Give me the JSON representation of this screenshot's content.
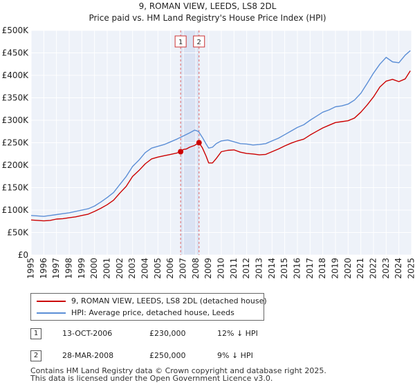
{
  "chart_data": {
    "type": "line",
    "title": "9, ROMAN VIEW, LEEDS, LS8 2DL",
    "subtitle": "Price paid vs. HM Land Registry's House Price Index (HPI)",
    "xlabel": "",
    "ylabel": "",
    "xlim": [
      1995,
      2025
    ],
    "ylim": [
      0,
      500000
    ],
    "grid": true,
    "x_ticks": [
      1995,
      1996,
      1997,
      1998,
      1999,
      2000,
      2001,
      2002,
      2003,
      2004,
      2005,
      2006,
      2007,
      2008,
      2009,
      2010,
      2011,
      2012,
      2013,
      2014,
      2015,
      2016,
      2017,
      2018,
      2019,
      2020,
      2021,
      2022,
      2023,
      2024,
      2025
    ],
    "x_tick_labels": [
      "1995",
      "1996",
      "1997",
      "1998",
      "1999",
      "2000",
      "2001",
      "2002",
      "2003",
      "2004",
      "2005",
      "2006",
      "2007",
      "2008",
      "2009",
      "2010",
      "2011",
      "2012",
      "2013",
      "2014",
      "2015",
      "2016",
      "2017",
      "2018",
      "2019",
      "2020",
      "2021",
      "2022",
      "2023",
      "2024",
      "2025"
    ],
    "y_ticks": [
      0,
      50000,
      100000,
      150000,
      200000,
      250000,
      300000,
      350000,
      400000,
      450000,
      500000
    ],
    "y_tick_labels": [
      "£0",
      "£50K",
      "£100K",
      "£150K",
      "£200K",
      "£250K",
      "£300K",
      "£350K",
      "£400K",
      "£450K",
      "£500K"
    ],
    "series": [
      {
        "name": "9, ROMAN VIEW, LEEDS, LS8 2DL (detached house)",
        "color": "#cc0000",
        "x": [
          1995.0,
          1995.5,
          1996.0,
          1996.5,
          1997.0,
          1997.5,
          1998.0,
          1998.5,
          1999.0,
          1999.5,
          2000.0,
          2000.5,
          2001.0,
          2001.5,
          2002.0,
          2002.5,
          2003.0,
          2003.5,
          2004.0,
          2004.5,
          2005.0,
          2005.5,
          2006.0,
          2006.5,
          2006.79,
          2007.0,
          2007.24,
          2007.5,
          2007.9,
          2008.0,
          2008.24,
          2008.5,
          2008.8,
          2009.0,
          2009.3,
          2009.6,
          2010.0,
          2010.5,
          2011.0,
          2011.5,
          2012.0,
          2012.5,
          2013.0,
          2013.5,
          2014.0,
          2014.5,
          2015.0,
          2015.5,
          2016.0,
          2016.5,
          2017.0,
          2017.5,
          2018.0,
          2018.5,
          2019.0,
          2019.5,
          2020.0,
          2020.5,
          2021.0,
          2021.5,
          2022.0,
          2022.5,
          2023.0,
          2023.5,
          2024.0,
          2024.5,
          2024.9
        ],
        "values": [
          78000,
          77000,
          76000,
          77000,
          80000,
          81000,
          83000,
          85000,
          88000,
          91000,
          97000,
          104000,
          112000,
          122000,
          138000,
          153000,
          175000,
          188000,
          203000,
          214000,
          218000,
          221000,
          224000,
          227000,
          230000,
          235000,
          236000,
          240000,
          244000,
          246000,
          250000,
          239000,
          220000,
          205000,
          205000,
          215000,
          230000,
          233000,
          234000,
          229000,
          226000,
          225000,
          223000,
          224000,
          230000,
          236000,
          243000,
          249000,
          254000,
          258000,
          267000,
          275000,
          283000,
          289000,
          295000,
          297000,
          299000,
          305000,
          318000,
          334000,
          352000,
          374000,
          387000,
          391000,
          386000,
          392000,
          410000
        ]
      },
      {
        "name": "HPI: Average price, detached house, Leeds",
        "color": "#5b8ed6",
        "x": [
          1995.0,
          1995.5,
          1996.0,
          1996.5,
          1997.0,
          1997.5,
          1998.0,
          1998.5,
          1999.0,
          1999.5,
          2000.0,
          2000.5,
          2001.0,
          2001.5,
          2002.0,
          2002.5,
          2003.0,
          2003.5,
          2004.0,
          2004.5,
          2005.0,
          2005.5,
          2006.0,
          2006.5,
          2007.0,
          2007.5,
          2007.9,
          2008.2,
          2008.5,
          2008.8,
          2009.0,
          2009.3,
          2009.6,
          2010.0,
          2010.5,
          2011.0,
          2011.5,
          2012.0,
          2012.5,
          2013.0,
          2013.5,
          2014.0,
          2014.5,
          2015.0,
          2015.5,
          2016.0,
          2016.5,
          2017.0,
          2017.5,
          2018.0,
          2018.5,
          2019.0,
          2019.5,
          2020.0,
          2020.5,
          2021.0,
          2021.5,
          2022.0,
          2022.5,
          2023.0,
          2023.5,
          2024.0,
          2024.5,
          2024.9
        ],
        "values": [
          88000,
          87000,
          86000,
          88000,
          90000,
          92000,
          94000,
          97000,
          100000,
          103000,
          109000,
          118000,
          128000,
          139000,
          157000,
          175000,
          197000,
          211000,
          228000,
          238000,
          242000,
          246000,
          252000,
          258000,
          265000,
          272000,
          278000,
          275000,
          262000,
          247000,
          238000,
          240000,
          248000,
          254000,
          256000,
          252000,
          248000,
          247000,
          245000,
          246000,
          248000,
          254000,
          260000,
          268000,
          276000,
          284000,
          290000,
          300000,
          309000,
          318000,
          323000,
          330000,
          332000,
          336000,
          345000,
          360000,
          382000,
          405000,
          425000,
          440000,
          430000,
          428000,
          445000,
          455000
        ]
      }
    ],
    "annotations": [
      {
        "label": "1",
        "date": "13-OCT-2006",
        "x": 2006.79,
        "price": 230000
      },
      {
        "label": "2",
        "date": "28-MAR-2008",
        "x": 2008.24,
        "price": 250000
      }
    ],
    "legend_position": "below"
  },
  "legend": {
    "property_label": "9, ROMAN VIEW, LEEDS, LS8 2DL (detached house)",
    "hpi_label": "HPI: Average price, detached house, Leeds",
    "property_color": "#cc0000",
    "hpi_color": "#5b8ed6"
  },
  "transactions": [
    {
      "badge": "1",
      "date": "13-OCT-2006",
      "price": "£230,000",
      "hpi_diff": "12% ↓ HPI"
    },
    {
      "badge": "2",
      "date": "28-MAR-2008",
      "price": "£250,000",
      "hpi_diff": "9% ↓ HPI"
    }
  ],
  "footer": {
    "line1": "Contains HM Land Registry data © Crown copyright and database right 2025.",
    "line2": "This data is licensed under the Open Government Licence v3.0."
  }
}
